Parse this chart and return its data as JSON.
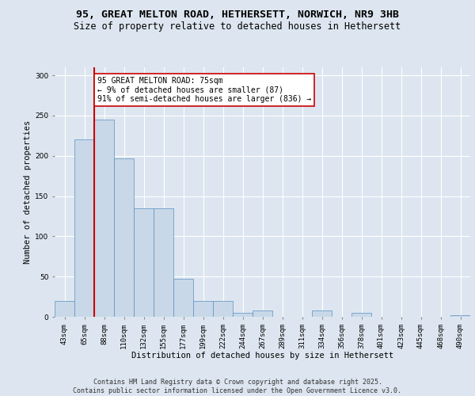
{
  "title_line1": "95, GREAT MELTON ROAD, HETHERSETT, NORWICH, NR9 3HB",
  "title_line2": "Size of property relative to detached houses in Hethersett",
  "xlabel": "Distribution of detached houses by size in Hethersett",
  "ylabel": "Number of detached properties",
  "bar_labels": [
    "43sqm",
    "65sqm",
    "88sqm",
    "110sqm",
    "132sqm",
    "155sqm",
    "177sqm",
    "199sqm",
    "222sqm",
    "244sqm",
    "267sqm",
    "289sqm",
    "311sqm",
    "334sqm",
    "356sqm",
    "378sqm",
    "401sqm",
    "423sqm",
    "445sqm",
    "468sqm",
    "490sqm"
  ],
  "bar_values": [
    20,
    220,
    245,
    197,
    135,
    135,
    47,
    20,
    20,
    5,
    8,
    0,
    0,
    8,
    0,
    5,
    0,
    0,
    0,
    0,
    2
  ],
  "bar_color": "#c8d8e8",
  "bar_edge_color": "#5a8fc0",
  "background_color": "#dde6f0",
  "grid_color": "#ffffff",
  "vline_x": 1.5,
  "vline_color": "#cc0000",
  "annotation_text": "95 GREAT MELTON ROAD: 75sqm\n← 9% of detached houses are smaller (87)\n91% of semi-detached houses are larger (836) →",
  "annotation_box_color": "#ffffff",
  "annotation_box_edge": "#cc0000",
  "ylim": [
    0,
    310
  ],
  "yticks": [
    0,
    50,
    100,
    150,
    200,
    250,
    300
  ],
  "footer_text": "Contains HM Land Registry data © Crown copyright and database right 2025.\nContains public sector information licensed under the Open Government Licence v3.0.",
  "title_fontsize": 9.5,
  "subtitle_fontsize": 8.5,
  "axis_label_fontsize": 7.5,
  "tick_fontsize": 6.5,
  "annotation_fontsize": 7,
  "footer_fontsize": 6
}
